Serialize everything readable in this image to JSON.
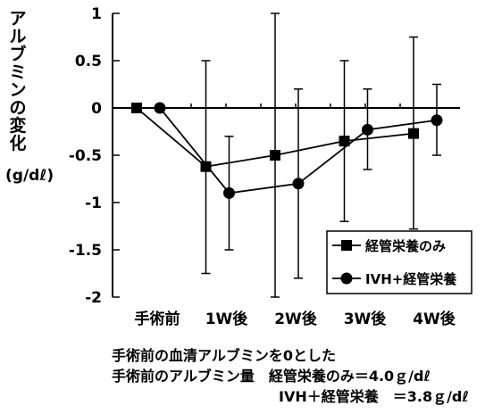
{
  "chart_data": {
    "type": "line",
    "ylabel_chars": [
      "ア",
      "ル",
      "ブ",
      "ミ",
      "ン",
      "の",
      "変",
      "化"
    ],
    "ylabel_unit": "(g/dℓ)",
    "categories": [
      "手術前",
      "1W後",
      "2W後",
      "3W後",
      "4W後"
    ],
    "ylim": [
      -2,
      1
    ],
    "yticks": [
      1,
      0.5,
      0,
      -0.5,
      -1,
      -1.5,
      -2
    ],
    "ytick_labels": [
      "1",
      "0.5",
      "0",
      "-0.5",
      "-1",
      "-1.5",
      "-2"
    ],
    "grid": false,
    "legend_position": "bottom-right",
    "series": [
      {
        "name": "経管栄養のみ",
        "marker": "square",
        "values": [
          0,
          -0.62,
          -0.5,
          -0.35,
          -0.27
        ],
        "err_low": [
          0,
          -1.75,
          -2.0,
          -1.2,
          -1.28
        ],
        "err_high": [
          0,
          0.5,
          1.0,
          0.5,
          0.75
        ]
      },
      {
        "name": "IVH+経管栄養",
        "marker": "circle",
        "values": [
          0,
          -0.9,
          -0.8,
          -0.23,
          -0.13
        ],
        "err_low": [
          0,
          -1.5,
          -1.8,
          -0.65,
          -0.5
        ],
        "err_high": [
          0,
          -0.3,
          0.2,
          0.2,
          0.25
        ]
      }
    ],
    "notes": [
      "手術前の血清アルブミンを0とした",
      "手術前のアルブミン量　経管栄養のみ＝4.0ｇ/dℓ",
      "IVH＋経管栄養　＝3.8ｇ/dℓ"
    ]
  }
}
